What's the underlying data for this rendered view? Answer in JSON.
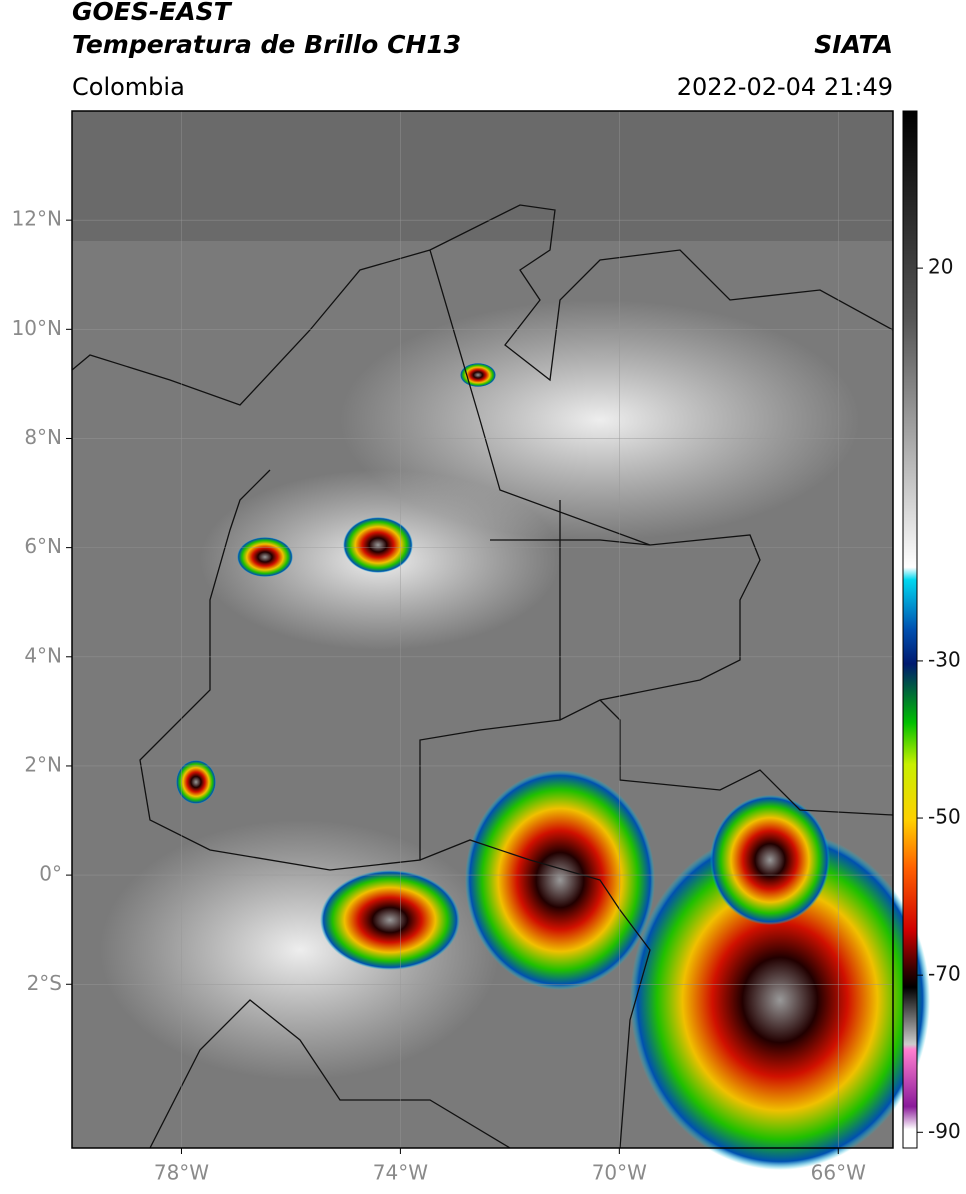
{
  "header": {
    "title": "GOES-EAST",
    "subtitle": "Temperatura de Brillo CH13",
    "agency": "SIATA",
    "region": "Colombia",
    "datetime": "2022-02-04 21:49"
  },
  "map": {
    "xlim": [
      -80,
      -65
    ],
    "ylim": [
      -5,
      14
    ],
    "xticks": [
      {
        "value": -78,
        "label": "78°W"
      },
      {
        "value": -74,
        "label": "74°W"
      },
      {
        "value": -70,
        "label": "70°W"
      },
      {
        "value": -66,
        "label": "66°W"
      }
    ],
    "yticks": [
      {
        "value": 12,
        "label": "12°N"
      },
      {
        "value": 10,
        "label": "10°N"
      },
      {
        "value": 8,
        "label": "8°N"
      },
      {
        "value": 6,
        "label": "6°N"
      },
      {
        "value": 4,
        "label": "4°N"
      },
      {
        "value": 2,
        "label": "2°N"
      },
      {
        "value": 0,
        "label": "0°"
      },
      {
        "value": -2,
        "label": "2°S"
      }
    ],
    "grid": true
  },
  "colorbar": {
    "lim": [
      -92,
      40
    ],
    "ticks": [
      20,
      -30,
      -50,
      -70,
      -90
    ]
  }
}
